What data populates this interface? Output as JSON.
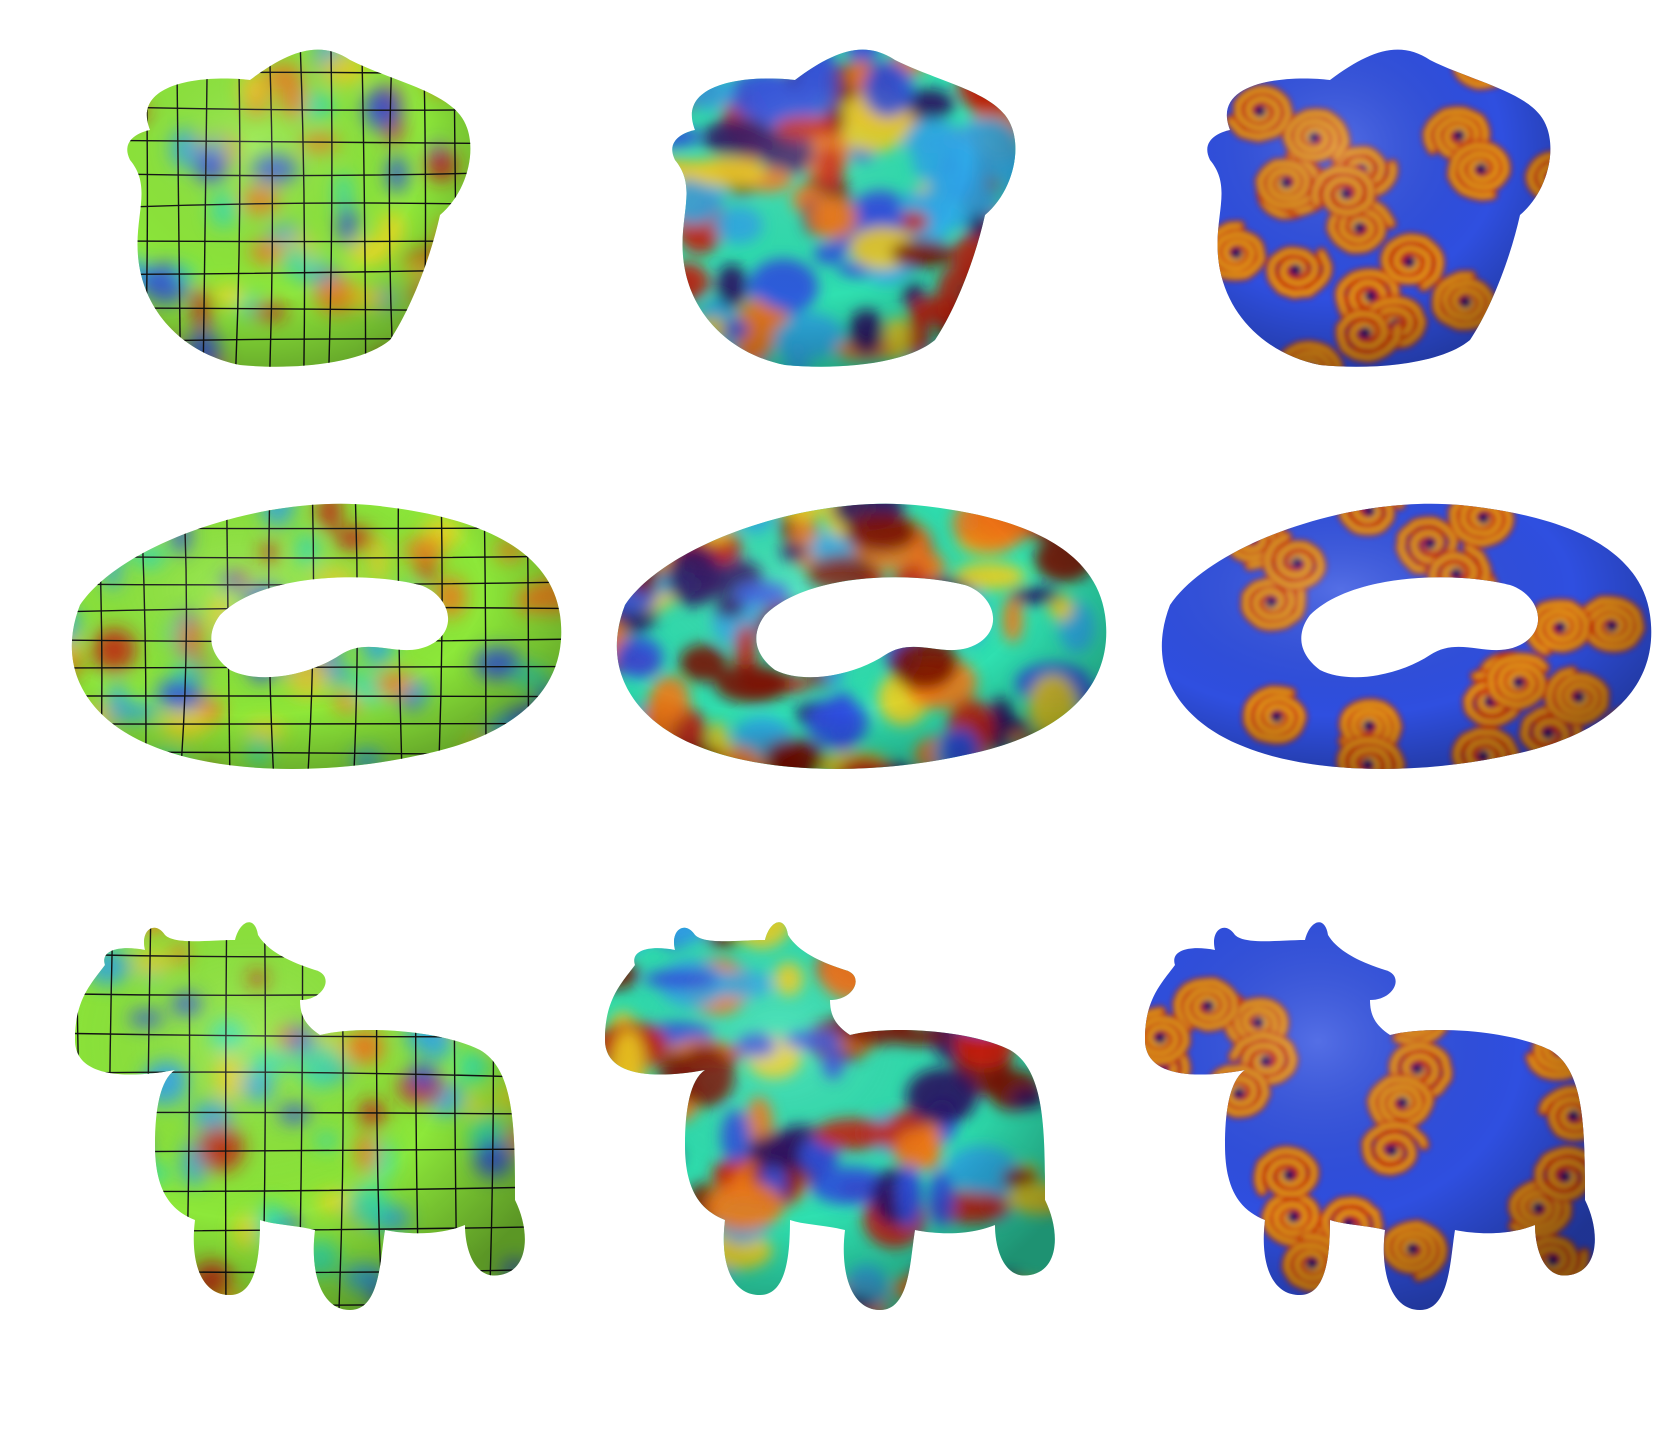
{
  "figure": {
    "rows": [
      "blob",
      "twisted-torus",
      "cow"
    ],
    "columns": [
      "initial-noise-with-quad-grid",
      "intermediate-pattern",
      "spiral-pattern"
    ],
    "colormap": [
      "#2a1060",
      "#2f4fe0",
      "#2fa8e8",
      "#2fe0b0",
      "#8de83a",
      "#f0d020",
      "#f07a14",
      "#c8200c",
      "#7a1004"
    ],
    "grid_line_color": "#111111",
    "background": "#ffffff"
  }
}
